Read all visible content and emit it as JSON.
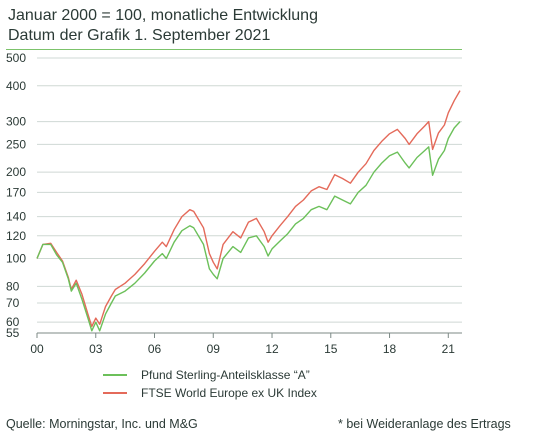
{
  "header": {
    "title": "Januar 2000 = 100, monatliche Entwicklung",
    "subtitle": "Datum der Grafik 1. September 2021"
  },
  "footer": {
    "source": "Quelle: Morningstar, Inc. und M&G",
    "note": "* bei Weideranlage des Ertrags"
  },
  "colors": {
    "series_a": "#6cc05a",
    "series_b": "#e46a5a",
    "accent_rule": "#7cc36b",
    "grid": "#cfd8d4",
    "text": "#2b3a36"
  },
  "chart_data": {
    "type": "line",
    "y_scale": "log",
    "ylim": [
      55,
      500
    ],
    "xlim": [
      2000.0,
      2021.7
    ],
    "yticks": [
      500,
      400,
      300,
      250,
      200,
      170,
      140,
      120,
      100,
      80,
      70,
      60,
      55
    ],
    "ytick_labels": [
      "500",
      "400",
      "300",
      "250",
      "200",
      "170",
      "140",
      "120",
      "100",
      "80",
      "70",
      "60",
      "55"
    ],
    "xticks": [
      2000,
      2003,
      2006,
      2009,
      2012,
      2015,
      2018,
      2021
    ],
    "xtick_labels": [
      "00",
      "03",
      "06",
      "09",
      "12",
      "15",
      "18",
      "21"
    ],
    "grid": true,
    "legend_position": "bottom",
    "series": [
      {
        "name": "Pfund Sterling-Anteilsklasse “A”",
        "color": "#6cc05a",
        "points": [
          [
            2000.0,
            100
          ],
          [
            2000.3,
            112
          ],
          [
            2000.7,
            112
          ],
          [
            2001.0,
            103
          ],
          [
            2001.3,
            97
          ],
          [
            2001.6,
            85
          ],
          [
            2001.75,
            77
          ],
          [
            2002.0,
            82
          ],
          [
            2002.3,
            72
          ],
          [
            2002.6,
            62
          ],
          [
            2002.8,
            56
          ],
          [
            2003.0,
            60
          ],
          [
            2003.2,
            56
          ],
          [
            2003.5,
            64
          ],
          [
            2003.8,
            70
          ],
          [
            2004.0,
            74
          ],
          [
            2004.5,
            77
          ],
          [
            2005.0,
            82
          ],
          [
            2005.5,
            89
          ],
          [
            2006.0,
            98
          ],
          [
            2006.4,
            104
          ],
          [
            2006.6,
            100
          ],
          [
            2007.0,
            114
          ],
          [
            2007.4,
            125
          ],
          [
            2007.8,
            130
          ],
          [
            2008.0,
            128
          ],
          [
            2008.5,
            112
          ],
          [
            2008.8,
            92
          ],
          [
            2009.0,
            88
          ],
          [
            2009.2,
            85
          ],
          [
            2009.5,
            100
          ],
          [
            2010.0,
            110
          ],
          [
            2010.4,
            105
          ],
          [
            2010.8,
            118
          ],
          [
            2011.2,
            120
          ],
          [
            2011.6,
            110
          ],
          [
            2011.8,
            102
          ],
          [
            2012.0,
            108
          ],
          [
            2012.4,
            115
          ],
          [
            2012.8,
            122
          ],
          [
            2013.2,
            132
          ],
          [
            2013.6,
            138
          ],
          [
            2014.0,
            148
          ],
          [
            2014.4,
            152
          ],
          [
            2014.8,
            148
          ],
          [
            2015.2,
            165
          ],
          [
            2015.6,
            160
          ],
          [
            2016.0,
            155
          ],
          [
            2016.4,
            170
          ],
          [
            2016.8,
            180
          ],
          [
            2017.2,
            200
          ],
          [
            2017.6,
            215
          ],
          [
            2018.0,
            228
          ],
          [
            2018.4,
            235
          ],
          [
            2018.8,
            215
          ],
          [
            2019.0,
            207
          ],
          [
            2019.4,
            225
          ],
          [
            2019.8,
            238
          ],
          [
            2020.0,
            245
          ],
          [
            2020.2,
            195
          ],
          [
            2020.5,
            222
          ],
          [
            2020.8,
            238
          ],
          [
            2021.0,
            262
          ],
          [
            2021.3,
            285
          ],
          [
            2021.6,
            300
          ]
        ]
      },
      {
        "name": "FTSE World Europe ex UK Index",
        "color": "#e46a5a",
        "points": [
          [
            2000.0,
            100
          ],
          [
            2000.3,
            112
          ],
          [
            2000.7,
            113
          ],
          [
            2001.0,
            105
          ],
          [
            2001.3,
            98
          ],
          [
            2001.6,
            86
          ],
          [
            2001.75,
            78
          ],
          [
            2002.0,
            84
          ],
          [
            2002.3,
            75
          ],
          [
            2002.6,
            64
          ],
          [
            2002.8,
            58
          ],
          [
            2003.0,
            62
          ],
          [
            2003.2,
            59
          ],
          [
            2003.5,
            68
          ],
          [
            2003.8,
            74
          ],
          [
            2004.0,
            78
          ],
          [
            2004.5,
            82
          ],
          [
            2005.0,
            88
          ],
          [
            2005.5,
            96
          ],
          [
            2006.0,
            106
          ],
          [
            2006.4,
            114
          ],
          [
            2006.6,
            110
          ],
          [
            2007.0,
            126
          ],
          [
            2007.4,
            140
          ],
          [
            2007.8,
            148
          ],
          [
            2008.0,
            146
          ],
          [
            2008.5,
            128
          ],
          [
            2008.8,
            104
          ],
          [
            2009.0,
            97
          ],
          [
            2009.2,
            92
          ],
          [
            2009.5,
            112
          ],
          [
            2010.0,
            124
          ],
          [
            2010.4,
            118
          ],
          [
            2010.8,
            134
          ],
          [
            2011.2,
            138
          ],
          [
            2011.6,
            124
          ],
          [
            2011.8,
            114
          ],
          [
            2012.0,
            120
          ],
          [
            2012.4,
            130
          ],
          [
            2012.8,
            140
          ],
          [
            2013.2,
            152
          ],
          [
            2013.6,
            160
          ],
          [
            2014.0,
            172
          ],
          [
            2014.4,
            178
          ],
          [
            2014.8,
            174
          ],
          [
            2015.2,
            196
          ],
          [
            2015.6,
            190
          ],
          [
            2016.0,
            183
          ],
          [
            2016.4,
            200
          ],
          [
            2016.8,
            214
          ],
          [
            2017.2,
            238
          ],
          [
            2017.6,
            256
          ],
          [
            2018.0,
            272
          ],
          [
            2018.4,
            282
          ],
          [
            2018.8,
            262
          ],
          [
            2019.0,
            250
          ],
          [
            2019.4,
            272
          ],
          [
            2019.8,
            290
          ],
          [
            2020.0,
            300
          ],
          [
            2020.2,
            240
          ],
          [
            2020.5,
            274
          ],
          [
            2020.8,
            292
          ],
          [
            2021.0,
            322
          ],
          [
            2021.3,
            355
          ],
          [
            2021.6,
            385
          ]
        ]
      }
    ]
  }
}
